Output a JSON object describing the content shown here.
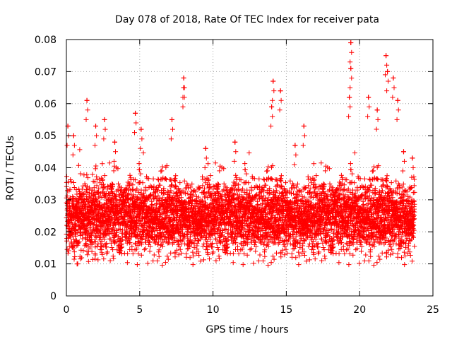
{
  "colors": {
    "marker": "#ff0000",
    "grid": "#a0a0a0",
    "axis": "#000000",
    "background": "#ffffff"
  },
  "chart_data": {
    "type": "scatter",
    "marker": "plus",
    "title": "Day 078 of 2018, Rate Of TEC Index for receiver pata",
    "xlabel": "GPS time / hours",
    "ylabel": "ROTI / TECUs",
    "xlim": [
      0,
      25
    ],
    "ylim": [
      0,
      0.08
    ],
    "xticks": [
      0,
      5,
      10,
      15,
      20,
      25
    ],
    "xtick_labels": [
      "0",
      "5",
      "10",
      "15",
      "20",
      "25"
    ],
    "yticks": [
      0,
      0.01,
      0.02,
      0.03,
      0.04,
      0.05,
      0.06,
      0.07,
      0.08
    ],
    "ytick_labels": [
      "0",
      "0.01",
      "0.02",
      "0.03",
      "0.04",
      "0.05",
      "0.06",
      "0.07",
      "0.08"
    ],
    "grid": true,
    "series": [
      {
        "name": "ROTI",
        "time_range_hours": [
          0,
          23.75
        ],
        "sample_interval_hours": 0.0083,
        "typical_range": [
          0.008,
          0.04
        ],
        "median": 0.02,
        "peaks": [
          {
            "x": 0.1,
            "y": 0.053
          },
          {
            "x": 0.5,
            "y": 0.05
          },
          {
            "x": 1.4,
            "y": 0.061
          },
          {
            "x": 2.0,
            "y": 0.053
          },
          {
            "x": 2.6,
            "y": 0.055
          },
          {
            "x": 3.3,
            "y": 0.048
          },
          {
            "x": 4.7,
            "y": 0.057
          },
          {
            "x": 5.1,
            "y": 0.052
          },
          {
            "x": 7.2,
            "y": 0.055
          },
          {
            "x": 8.0,
            "y": 0.068
          },
          {
            "x": 8.0,
            "y": 0.065
          },
          {
            "x": 9.5,
            "y": 0.046
          },
          {
            "x": 11.5,
            "y": 0.048
          },
          {
            "x": 14.0,
            "y": 0.059
          },
          {
            "x": 14.1,
            "y": 0.067
          },
          {
            "x": 14.6,
            "y": 0.064
          },
          {
            "x": 15.6,
            "y": 0.047
          },
          {
            "x": 16.2,
            "y": 0.053
          },
          {
            "x": 19.3,
            "y": 0.062
          },
          {
            "x": 19.4,
            "y": 0.071
          },
          {
            "x": 19.4,
            "y": 0.079
          },
          {
            "x": 20.6,
            "y": 0.062
          },
          {
            "x": 21.2,
            "y": 0.058
          },
          {
            "x": 21.8,
            "y": 0.075
          },
          {
            "x": 21.9,
            "y": 0.07
          },
          {
            "x": 22.3,
            "y": 0.068
          },
          {
            "x": 22.6,
            "y": 0.061
          },
          {
            "x": 23.0,
            "y": 0.045
          },
          {
            "x": 23.6,
            "y": 0.043
          }
        ]
      }
    ]
  }
}
